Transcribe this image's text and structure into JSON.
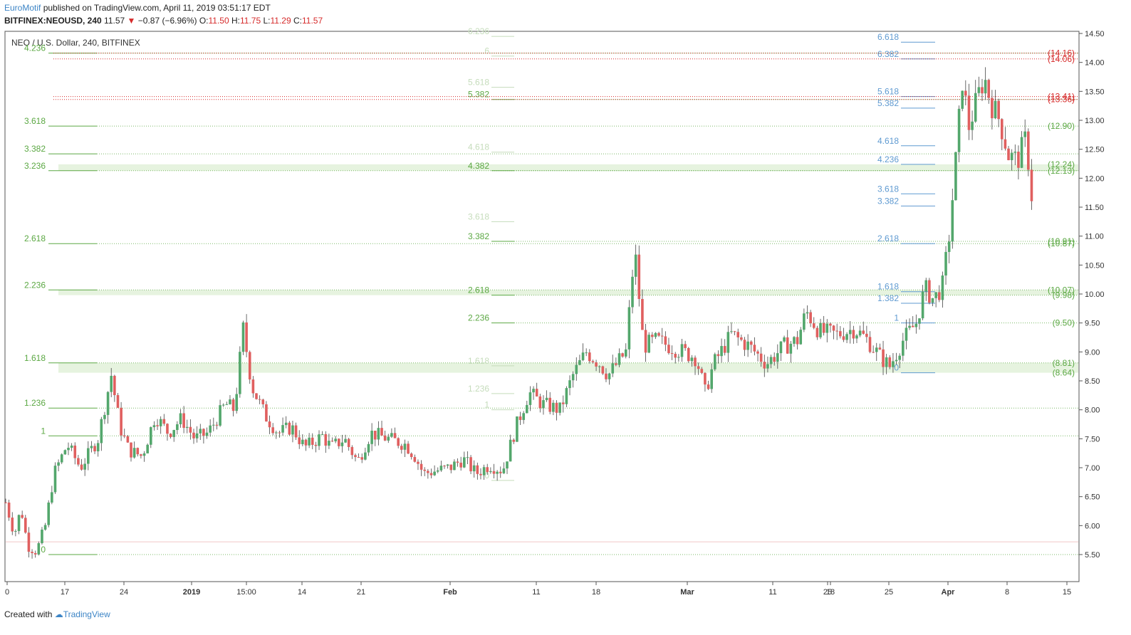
{
  "header": {
    "author": "EuroMotif",
    "published_text": "published on TradingView.com, April 11, 2019 03:51:17 EDT",
    "symbol": "BITFINEX:NEOUSD, 240",
    "last_price": "11.57",
    "change": "−0.87 (−6.96%)",
    "open_label": "O:",
    "open": "11.50",
    "high_label": "H:",
    "high": "11.75",
    "low_label": "L:",
    "low": "11.29",
    "close_label": "C:",
    "close": "11.57"
  },
  "footer": {
    "created_with": "Created with",
    "brand": "TradingView"
  },
  "chart_data": {
    "type": "candlestick",
    "title": "NEO / U.S. Dollar, 240, BITFINEX",
    "ylim": [
      5.28,
      14.5
    ],
    "yticks": [
      "14.50",
      "14.00",
      "13.50",
      "13.00",
      "12.50",
      "12.00",
      "11.50",
      "11.00",
      "10.50",
      "10.00",
      "9.50",
      "9.00",
      "8.50",
      "8.00",
      "7.50",
      "7.00",
      "6.50",
      "6.00",
      "5.50"
    ],
    "xticks": [
      "0",
      "17",
      "24",
      "2019",
      "15:00",
      "14",
      "21",
      "Feb",
      "11",
      "18",
      "25",
      "Mar",
      "11",
      "18",
      "25",
      "Apr",
      "8",
      "15"
    ],
    "colors": {
      "up": "#53a76c",
      "down": "#e05f5f",
      "fib_green": "#5ba843",
      "fib_faint": "#c5dcbb",
      "fib_blue": "#5f9ad1",
      "fib_red": "#d62b2b"
    },
    "price_path": [
      [
        0,
        6.4
      ],
      [
        2,
        5.85
      ],
      [
        3.5,
        6.3
      ],
      [
        5,
        5.65
      ],
      [
        7,
        5.55
      ],
      [
        9,
        6.0
      ],
      [
        11,
        6.9
      ],
      [
        14,
        7.4
      ],
      [
        17,
        7.0
      ],
      [
        21,
        7.5
      ],
      [
        24,
        8.6
      ],
      [
        26,
        7.7
      ],
      [
        28,
        7.3
      ],
      [
        31,
        7.2
      ],
      [
        34,
        7.9
      ],
      [
        37,
        7.6
      ],
      [
        40,
        7.85
      ],
      [
        43,
        7.5
      ],
      [
        46,
        7.6
      ],
      [
        50,
        8.1
      ],
      [
        52,
        8.0
      ],
      [
        54,
        9.4
      ],
      [
        56,
        8.4
      ],
      [
        59,
        7.9
      ],
      [
        62,
        7.6
      ],
      [
        65,
        7.7
      ],
      [
        68,
        7.35
      ],
      [
        72,
        7.55
      ],
      [
        74,
        7.35
      ],
      [
        77,
        7.5
      ],
      [
        80,
        7.1
      ],
      [
        83,
        7.6
      ],
      [
        87,
        7.5
      ],
      [
        91,
        7.4
      ],
      [
        93,
        7.2
      ],
      [
        95,
        6.9
      ],
      [
        98,
        6.95
      ],
      [
        101,
        7.0
      ],
      [
        104,
        7.15
      ],
      [
        107,
        6.9
      ],
      [
        110,
        7.05
      ],
      [
        113,
        6.95
      ],
      [
        116,
        7.7
      ],
      [
        119,
        8.3
      ],
      [
        122,
        8.1
      ],
      [
        126,
        8.0
      ],
      [
        129,
        8.6
      ],
      [
        132,
        9.0
      ],
      [
        135,
        8.8
      ],
      [
        137,
        8.6
      ],
      [
        141,
        9.0
      ],
      [
        143,
        10.8
      ],
      [
        145,
        9.1
      ],
      [
        148,
        9.2
      ],
      [
        151,
        9.1
      ],
      [
        154,
        9.0
      ],
      [
        157,
        8.9
      ],
      [
        159,
        8.3
      ],
      [
        161,
        8.8
      ],
      [
        165,
        9.3
      ],
      [
        169,
        9.1
      ],
      [
        173,
        8.8
      ],
      [
        177,
        9.1
      ],
      [
        180,
        9.2
      ],
      [
        182,
        9.7
      ],
      [
        185,
        9.35
      ],
      [
        189,
        9.3
      ],
      [
        193,
        9.4
      ],
      [
        196,
        9.2
      ],
      [
        199,
        8.9
      ],
      [
        201,
        8.75
      ],
      [
        204,
        9.2
      ],
      [
        207,
        9.5
      ],
      [
        209,
        10.1
      ],
      [
        211,
        9.9
      ],
      [
        213,
        10.15
      ],
      [
        214.5,
        11.0
      ],
      [
        216,
        12.3
      ],
      [
        217.5,
        13.7
      ],
      [
        219,
        12.9
      ],
      [
        221,
        13.4
      ],
      [
        222.5,
        13.75
      ],
      [
        224,
        13.3
      ],
      [
        226,
        13.0
      ],
      [
        228,
        12.4
      ],
      [
        230,
        12.3
      ],
      [
        232,
        12.7
      ],
      [
        233.5,
        11.5
      ]
    ],
    "fib_levels": [
      {
        "group": "left",
        "label": "4.236",
        "price": 14.16
      },
      {
        "group": "left",
        "label": "3.618",
        "price": 12.9
      },
      {
        "group": "left",
        "label": "3.382",
        "price": 12.42
      },
      {
        "group": "left",
        "label": "3.236",
        "price": 12.13
      },
      {
        "group": "left",
        "label": "2.618",
        "price": 10.87
      },
      {
        "group": "left",
        "label": "2.236",
        "price": 10.07
      },
      {
        "group": "left",
        "label": "1.618",
        "price": 8.81
      },
      {
        "group": "left",
        "label": "1.236",
        "price": 8.03
      },
      {
        "group": "left",
        "label": "1",
        "price": 7.55
      },
      {
        "group": "left",
        "label": "0",
        "price": 5.5
      },
      {
        "group": "middle",
        "label": "6.236",
        "price": 14.45
      },
      {
        "group": "middle",
        "label": "6",
        "price": 14.11
      },
      {
        "group": "middle",
        "label": "5.618",
        "price": 13.57
      },
      {
        "group": "middle",
        "label": "5.382",
        "price": 13.36
      },
      {
        "group": "middle",
        "label": "4.618",
        "price": 12.45
      },
      {
        "group": "middle",
        "label": "4.382",
        "price": 12.13
      },
      {
        "group": "middle",
        "label": "3.618",
        "price": 11.25
      },
      {
        "group": "middle",
        "label": "3.382",
        "price": 10.91
      },
      {
        "group": "middle",
        "label": "2.618",
        "price": 9.98
      },
      {
        "group": "middle",
        "label": "2.236",
        "price": 9.5
      },
      {
        "group": "middle",
        "label": "1.618",
        "price": 8.76
      },
      {
        "group": "middle",
        "label": "1.236",
        "price": 8.28
      },
      {
        "group": "middle",
        "label": "1",
        "price": 8.0
      },
      {
        "group": "middle",
        "label": "0",
        "price": 6.78
      },
      {
        "group": "right",
        "label": "6.618",
        "price": 14.35
      },
      {
        "group": "right",
        "label": "6.382",
        "price": 14.06
      },
      {
        "group": "right",
        "label": "5.618",
        "price": 13.41
      },
      {
        "group": "right",
        "label": "5.382",
        "price": 13.21
      },
      {
        "group": "right",
        "label": "4.618",
        "price": 12.56
      },
      {
        "group": "right",
        "label": "4.236",
        "price": 12.24
      },
      {
        "group": "right",
        "label": "3.618",
        "price": 11.73
      },
      {
        "group": "right",
        "label": "3.382",
        "price": 11.52
      },
      {
        "group": "right",
        "label": "2.618",
        "price": 10.87
      },
      {
        "group": "right",
        "label": "1.618",
        "price": 10.04
      },
      {
        "group": "right",
        "label": "1.382",
        "price": 9.84
      },
      {
        "group": "right",
        "label": "1",
        "price": 9.5
      },
      {
        "group": "right",
        "label": "0",
        "price": 8.64
      }
    ],
    "right_labels": [
      {
        "label": "(14.16)",
        "price": 14.16,
        "color": "red"
      },
      {
        "label": "(14.06)",
        "price": 14.06,
        "color": "red"
      },
      {
        "label": "(13.41)",
        "price": 13.41,
        "color": "red"
      },
      {
        "label": "(13.36)",
        "price": 13.36,
        "color": "red"
      },
      {
        "label": "(12.90)",
        "price": 12.9,
        "color": "green"
      },
      {
        "label": "(12.24)",
        "price": 12.24,
        "color": "green"
      },
      {
        "label": "(12.13)",
        "price": 12.13,
        "color": "green"
      },
      {
        "label": "(10.91)",
        "price": 10.91,
        "color": "green"
      },
      {
        "label": "(10.87)",
        "price": 10.87,
        "color": "green"
      },
      {
        "label": "(10.07)",
        "price": 10.07,
        "color": "green"
      },
      {
        "label": "(9.98)",
        "price": 9.98,
        "color": "green"
      },
      {
        "label": "(9.50)",
        "price": 9.5,
        "color": "green"
      },
      {
        "label": "(8.81)",
        "price": 8.81,
        "color": "green"
      },
      {
        "label": "(8.64)",
        "price": 8.64,
        "color": "green"
      }
    ],
    "zones": [
      {
        "from": 12.13,
        "to": 12.24
      },
      {
        "from": 9.98,
        "to": 10.07
      },
      {
        "from": 8.64,
        "to": 8.81
      }
    ]
  }
}
